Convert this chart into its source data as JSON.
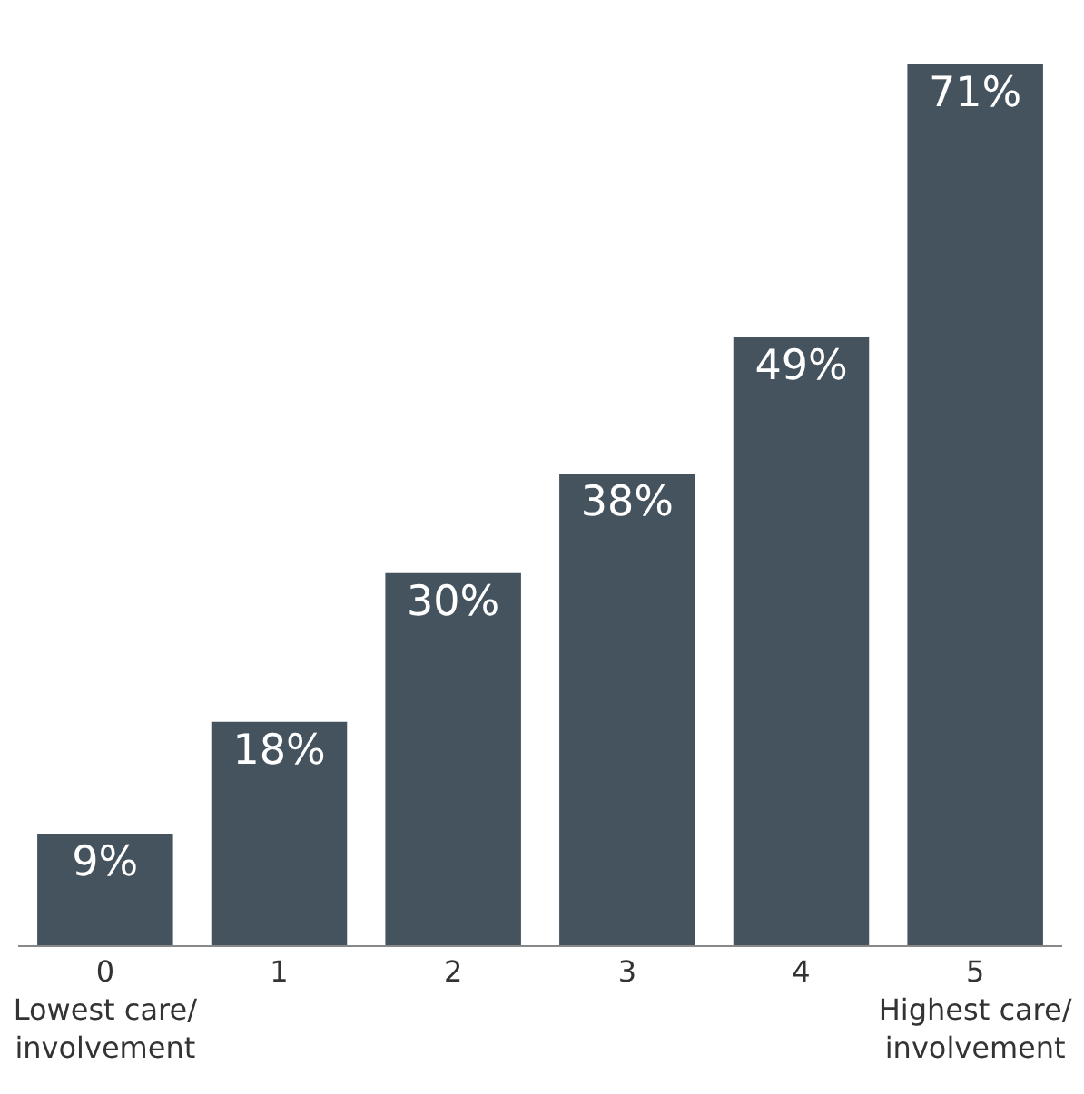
{
  "chart_data": {
    "type": "bar",
    "categories": [
      "0\nLowest care/\ninvolvement",
      "1",
      "2",
      "3",
      "4",
      "5\nHighest care/\ninvolvement"
    ],
    "values": [
      9,
      18,
      30,
      38,
      49,
      71
    ],
    "value_labels": [
      "9%",
      "18%",
      "30%",
      "38%",
      "49%",
      "71%"
    ],
    "color": "#44535e",
    "grid": false,
    "legend": false
  }
}
